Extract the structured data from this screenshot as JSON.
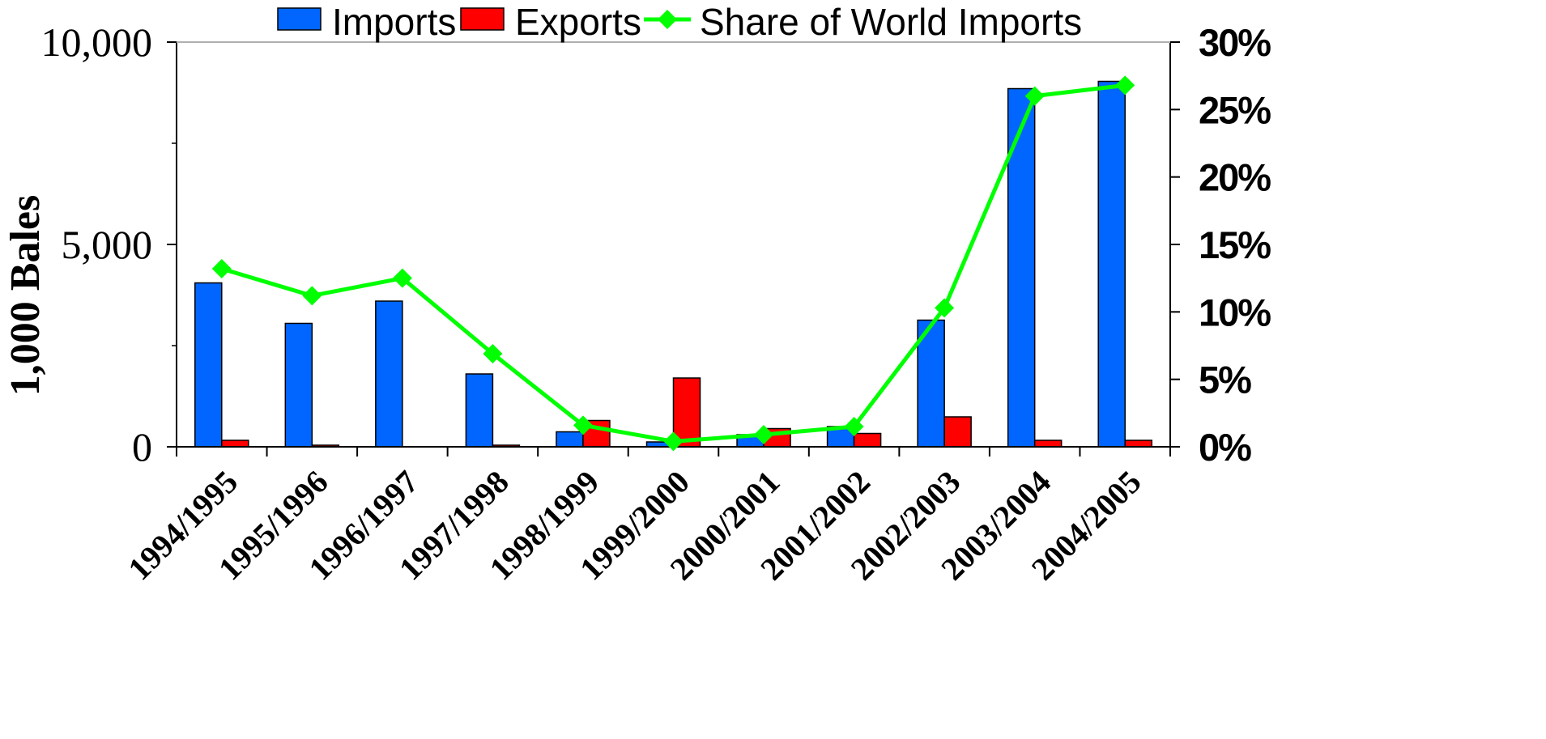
{
  "chart_data": {
    "type": "bar",
    "categories": [
      "1994/1995",
      "1995/1996",
      "1996/1997",
      "1997/1998",
      "1998/1999",
      "1999/2000",
      "2000/2001",
      "2001/2002",
      "2002/2003",
      "2003/2004",
      "2004/2005"
    ],
    "series": [
      {
        "name": "Imports",
        "type": "bar",
        "axis": "left",
        "color": "#0066ff",
        "values": [
          4050,
          3050,
          3600,
          1800,
          370,
          120,
          300,
          500,
          3130,
          8850,
          9030
        ]
      },
      {
        "name": "Exports",
        "type": "bar",
        "axis": "left",
        "color": "#ff0000",
        "values": [
          160,
          40,
          0,
          40,
          650,
          1700,
          450,
          330,
          740,
          160,
          160
        ]
      },
      {
        "name": "Share of World Imports",
        "type": "line",
        "axis": "right",
        "color": "#00ff00",
        "marker": "diamond",
        "values": [
          13.2,
          11.2,
          12.5,
          6.9,
          1.6,
          0.4,
          0.9,
          1.5,
          10.3,
          26.0,
          26.8
        ]
      }
    ],
    "title": "",
    "xlabel": "",
    "ylabel": "1,000 Bales",
    "ylabel_right": "",
    "ylim": [
      0,
      10000
    ],
    "ylim_right": [
      0,
      30
    ],
    "yticks": [
      "0",
      "5,000",
      "10,000"
    ],
    "yticks_right": [
      "0%",
      "5%",
      "10%",
      "15%",
      "20%",
      "25%",
      "30%"
    ],
    "grid": false,
    "legend_position": "top"
  }
}
